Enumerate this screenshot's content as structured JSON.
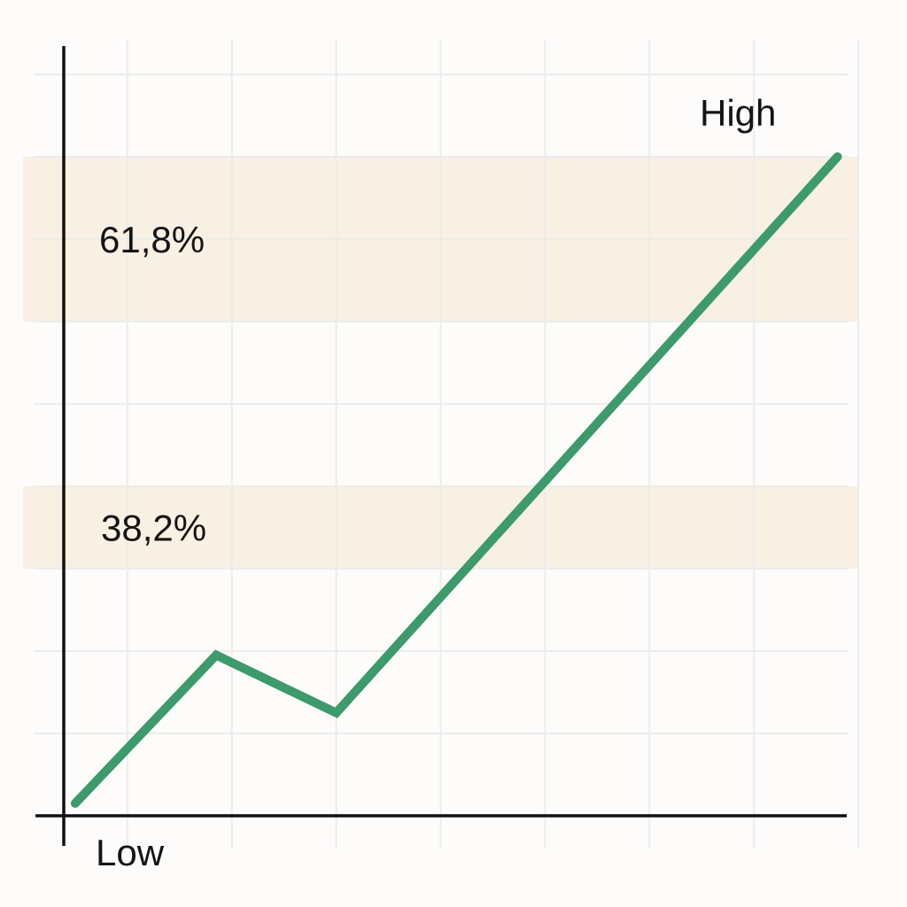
{
  "chart_data": {
    "type": "line",
    "title": "",
    "xlabel": "",
    "ylabel": "",
    "grid": true,
    "xlim": [
      0,
      8.5
    ],
    "ylim": [
      0,
      9
    ],
    "x": [
      0.5,
      1.85,
      3.0,
      7.8
    ],
    "y": [
      0.15,
      1.95,
      1.25,
      8.0
    ],
    "series": [
      {
        "values": [
          0.15,
          1.95,
          1.25,
          8.0
        ],
        "color": "#3d9a6b"
      }
    ],
    "fib_zones": [
      {
        "label": "61,8%",
        "y_from": 6.0,
        "y_to": 8.0
      },
      {
        "label": "38,2%",
        "y_from": 3.0,
        "y_to": 4.0
      }
    ],
    "annotations": {
      "low": "Low",
      "high": "High"
    },
    "colors": {
      "line": "#3d9a6b",
      "zone": "#f7f0e3",
      "grid": "#ececec",
      "axis": "#111111",
      "text": "#141414"
    }
  }
}
